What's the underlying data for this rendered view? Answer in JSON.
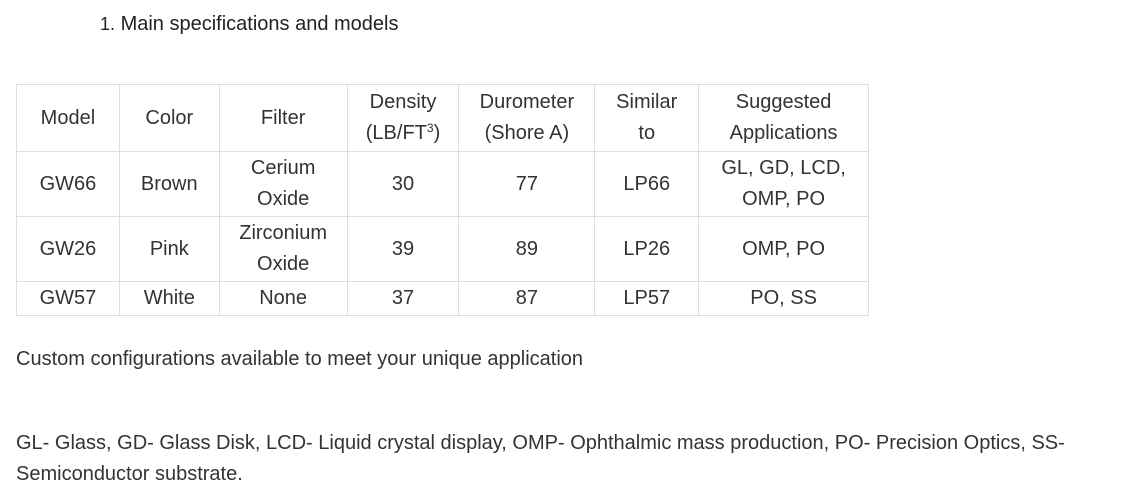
{
  "section": {
    "number": "1.",
    "title": "Main specifications and models"
  },
  "table": {
    "headers": {
      "model": "Model",
      "color": "Color",
      "filter": "Filter",
      "density_line1": "Density",
      "density_line2_prefix": "(LB/FT",
      "density_sup": "3",
      "density_line2_suffix": ")",
      "durometer_line1": "Durometer",
      "durometer_line2": "(Shore A)",
      "similar_line1": "Similar",
      "similar_line2": "to",
      "applications_line1": "Suggested",
      "applications_line2": "Applications"
    },
    "rows": [
      {
        "model": "GW66",
        "color": "Brown",
        "filter_line1": "Cerium",
        "filter_line2": "Oxide",
        "density": "30",
        "durometer": "77",
        "similar": "LP66",
        "applications_line1": "GL, GD, LCD,",
        "applications_line2": "OMP, PO"
      },
      {
        "model": "GW26",
        "color": "Pink",
        "filter_line1": "Zirconium",
        "filter_line2": "Oxide",
        "density": "39",
        "durometer": "89",
        "similar": "LP26",
        "applications_line1": "OMP, PO",
        "applications_line2": ""
      },
      {
        "model": "GW57",
        "color": "White",
        "filter_line1": "None",
        "filter_line2": "",
        "density": "37",
        "durometer": "87",
        "similar": "LP57",
        "applications_line1": "PO, SS",
        "applications_line2": ""
      }
    ]
  },
  "custom_note": "Custom configurations available to meet your unique application",
  "legend_text": "GL- Glass, GD- Glass Disk, LCD- Liquid crystal display, OMP- Ophthalmic mass production, PO- Precision Optics, SS-Semiconductor substrate."
}
